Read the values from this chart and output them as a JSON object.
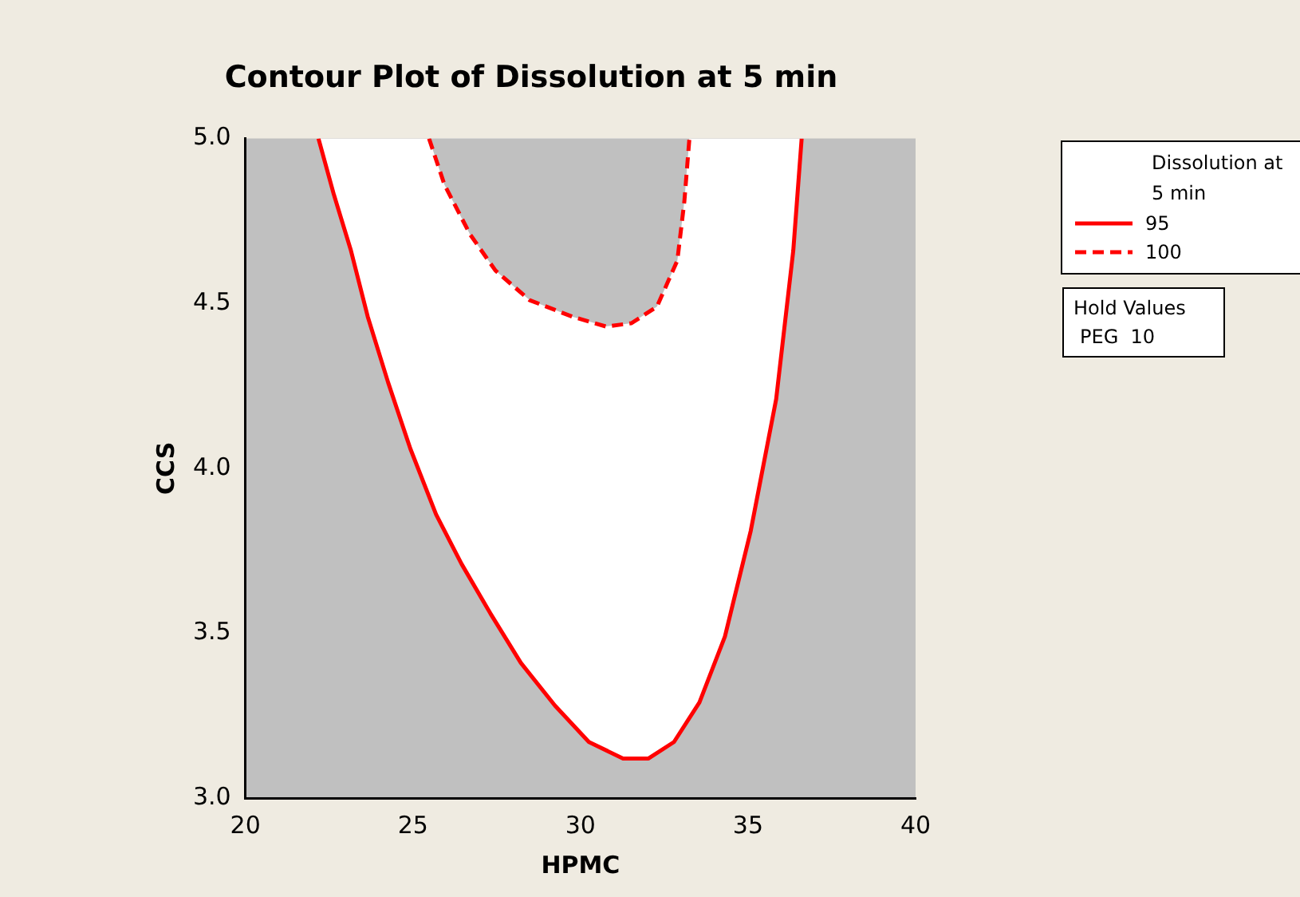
{
  "chart_data": {
    "type": "line",
    "title": "Contour Plot of Dissolution at 5 min",
    "xlabel": "HPMC",
    "ylabel": "CCS",
    "legend_title": "Dissolution at 5 min",
    "legend": "top right",
    "marker": "none",
    "grid": false,
    "xlim": [
      20,
      40
    ],
    "xticks": [
      20,
      25,
      30,
      35,
      40
    ],
    "ylim": [
      3.0,
      5.0
    ],
    "yticks": [
      {
        "value": 3.0,
        "label": "3.0"
      },
      {
        "value": 3.5,
        "label": "3.5"
      },
      {
        "value": 4.0,
        "label": "4.0"
      },
      {
        "value": 4.5,
        "label": "4.5"
      },
      {
        "value": 5.0,
        "label": "5.0"
      }
    ],
    "series": [
      {
        "name": "95",
        "color": "#ff0000",
        "line_style": "solid",
        "x": [
          22.18,
          22.64,
          23.15,
          23.65,
          24.26,
          24.92,
          25.69,
          26.45,
          27.31,
          28.22,
          29.24,
          30.25,
          31.27,
          32.03,
          32.79,
          33.55,
          34.31,
          35.08,
          35.84,
          36.35,
          36.6
        ],
        "values": [
          5.0,
          4.83,
          4.66,
          4.46,
          4.26,
          4.06,
          3.86,
          3.71,
          3.56,
          3.41,
          3.28,
          3.17,
          3.12,
          3.12,
          3.17,
          3.29,
          3.49,
          3.81,
          4.21,
          4.66,
          5.0
        ]
      },
      {
        "name": "100",
        "color": "#ff0000",
        "line_style": "dashed",
        "x": [
          25.48,
          25.94,
          26.7,
          27.46,
          28.48,
          29.75,
          30.76,
          31.52,
          32.28,
          32.89,
          33.1,
          33.25
        ],
        "values": [
          5.0,
          4.86,
          4.71,
          4.6,
          4.51,
          4.46,
          4.43,
          4.44,
          4.49,
          4.63,
          4.81,
          5.0
        ]
      }
    ],
    "annotations": [
      "Hold Values",
      "PEG  10"
    ]
  }
}
